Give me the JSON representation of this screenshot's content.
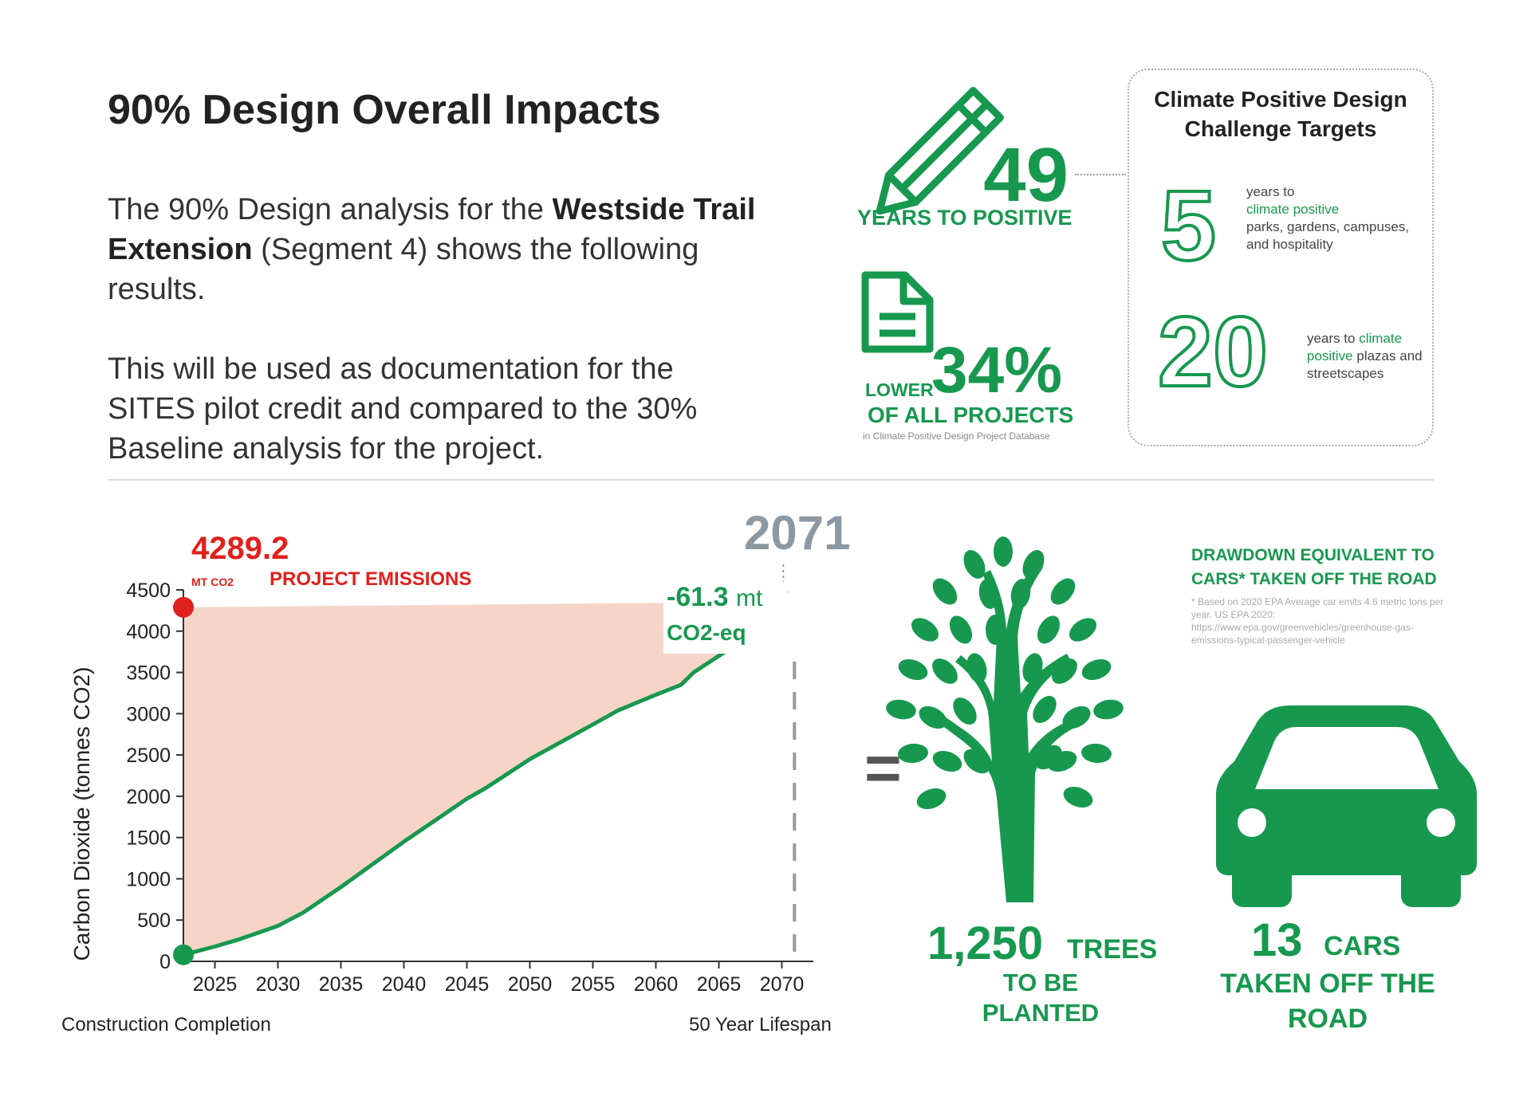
{
  "header": {
    "title": "90% Design Overall Impacts",
    "intro": {
      "prefix": "The 90% Design analysis for the ",
      "project": "Westside Trail Extension",
      "suffix": " (Segment 4) shows the following results."
    },
    "usage": "This will be used as documentation for the SITES pilot credit and compared to the 30% Baseline analysis for the project."
  },
  "stats": {
    "years_to_positive": {
      "value": "49",
      "label": "YEARS TO POSITIVE"
    },
    "lower_than": {
      "prefix": "LOWER",
      "value": "34%",
      "label": "OF ALL PROJECTS",
      "source": "in Climate Positive Design Project Database"
    }
  },
  "targets": {
    "title": "Climate Positive Design Challenge Targets",
    "items": [
      {
        "value": "5",
        "lead": "years to",
        "highlight": "climate positive",
        "rest": "parks, gardens, campuses, and hospitality"
      },
      {
        "value": "20",
        "lead": "years to",
        "highlight": "climate positive",
        "rest": "plazas and streetscapes"
      }
    ]
  },
  "chart_annotations": {
    "peak_value": "4289.2",
    "peak_unit": "MT CO2",
    "peak_label": "PROJECT EMISSIONS",
    "year_flag": "2071",
    "net_value": "-61.3",
    "net_unit_small": "mt",
    "net_unit": "CO2-eq",
    "start_label": "Construction Completion",
    "end_label": "50 Year Lifespan"
  },
  "chart_data": {
    "type": "area",
    "ylabel": "Carbon Dioxide (tonnes CO2)",
    "xlabel": "",
    "xlim": [
      2022.5,
      2072.5
    ],
    "ylim": [
      0,
      4500
    ],
    "xticks": [
      2025,
      2030,
      2035,
      2040,
      2045,
      2050,
      2055,
      2060,
      2065,
      2070
    ],
    "yticks": [
      0,
      500,
      1000,
      1500,
      2000,
      2500,
      3000,
      3500,
      4000,
      4500
    ],
    "grid": false,
    "emissions": {
      "x": [
        2022.5,
        2065.5
      ],
      "y": [
        4289.2,
        4350
      ]
    },
    "sequestration": {
      "x": [
        2022.5,
        2025,
        2027,
        2030,
        2032,
        2035,
        2040,
        2045,
        2046.5,
        2050,
        2055,
        2057,
        2060,
        2062,
        2063,
        2064,
        2065.5
      ],
      "y": [
        80,
        180,
        270,
        430,
        590,
        900,
        1450,
        1970,
        2100,
        2450,
        2870,
        3040,
        3230,
        3350,
        3500,
        3600,
        3750
      ]
    },
    "start_point": {
      "x": 2022.5,
      "y": 4289.2
    },
    "end_point": {
      "x": 2022.5,
      "y": 80
    },
    "lifespan_end_x": 2071
  },
  "equivalents": {
    "trees": {
      "value": "1,250",
      "word": "TREES",
      "line2": "TO BE PLANTED"
    },
    "cars": {
      "title": "DRAWDOWN EQUIVALENT TO CARS* TAKEN OFF THE ROAD",
      "note": "* Based on 2020 EPA Average car emits 4.6 metric tons per year. US EPA 2020: https://www.epa.gov/greenvehicles/greenhouse-gas-emissions-typical-passenger-vehicle",
      "value": "13",
      "word": "CARS",
      "line2": "TAKEN OFF THE ROAD"
    }
  },
  "colors": {
    "green": "#17984f",
    "red": "#e0201c",
    "fill": "#f6d5c8",
    "grey": "#8c99a3"
  }
}
